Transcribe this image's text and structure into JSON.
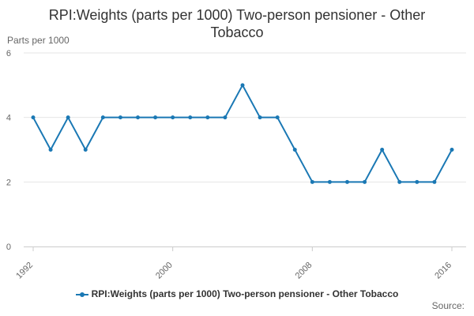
{
  "header": {
    "title_line1": "RPI:Weights (parts per 1000) Two-person pensioner - Other",
    "title_line2": "Tobacco"
  },
  "footer": {
    "source": "Source:"
  },
  "colors": {
    "series": "#1a78b4",
    "grid": "#e6e6e6",
    "axis": "#cccccc"
  },
  "chart_data": {
    "type": "line",
    "title": "RPI:Weights (parts per 1000) Two-person pensioner - Other Tobacco",
    "ylabel": "Parts per 1000",
    "xlabel": "",
    "ylim": [
      0,
      6
    ],
    "yticks": [
      0,
      2,
      4,
      6
    ],
    "xticks": [
      1992,
      2000,
      2008,
      2016
    ],
    "grid": true,
    "legend": "bottom",
    "series": [
      {
        "name": "RPI:Weights (parts per 1000) Two-person pensioner - Other Tobacco",
        "x": [
          1992,
          1993,
          1994,
          1995,
          1996,
          1997,
          1998,
          1999,
          2000,
          2001,
          2002,
          2003,
          2004,
          2005,
          2006,
          2007,
          2008,
          2009,
          2010,
          2011,
          2012,
          2013,
          2014,
          2015,
          2016
        ],
        "values": [
          4,
          3,
          4,
          3,
          4,
          4,
          4,
          4,
          4,
          4,
          4,
          4,
          5,
          4,
          4,
          3,
          2,
          2,
          2,
          2,
          3,
          2,
          2,
          2,
          3
        ]
      }
    ]
  }
}
